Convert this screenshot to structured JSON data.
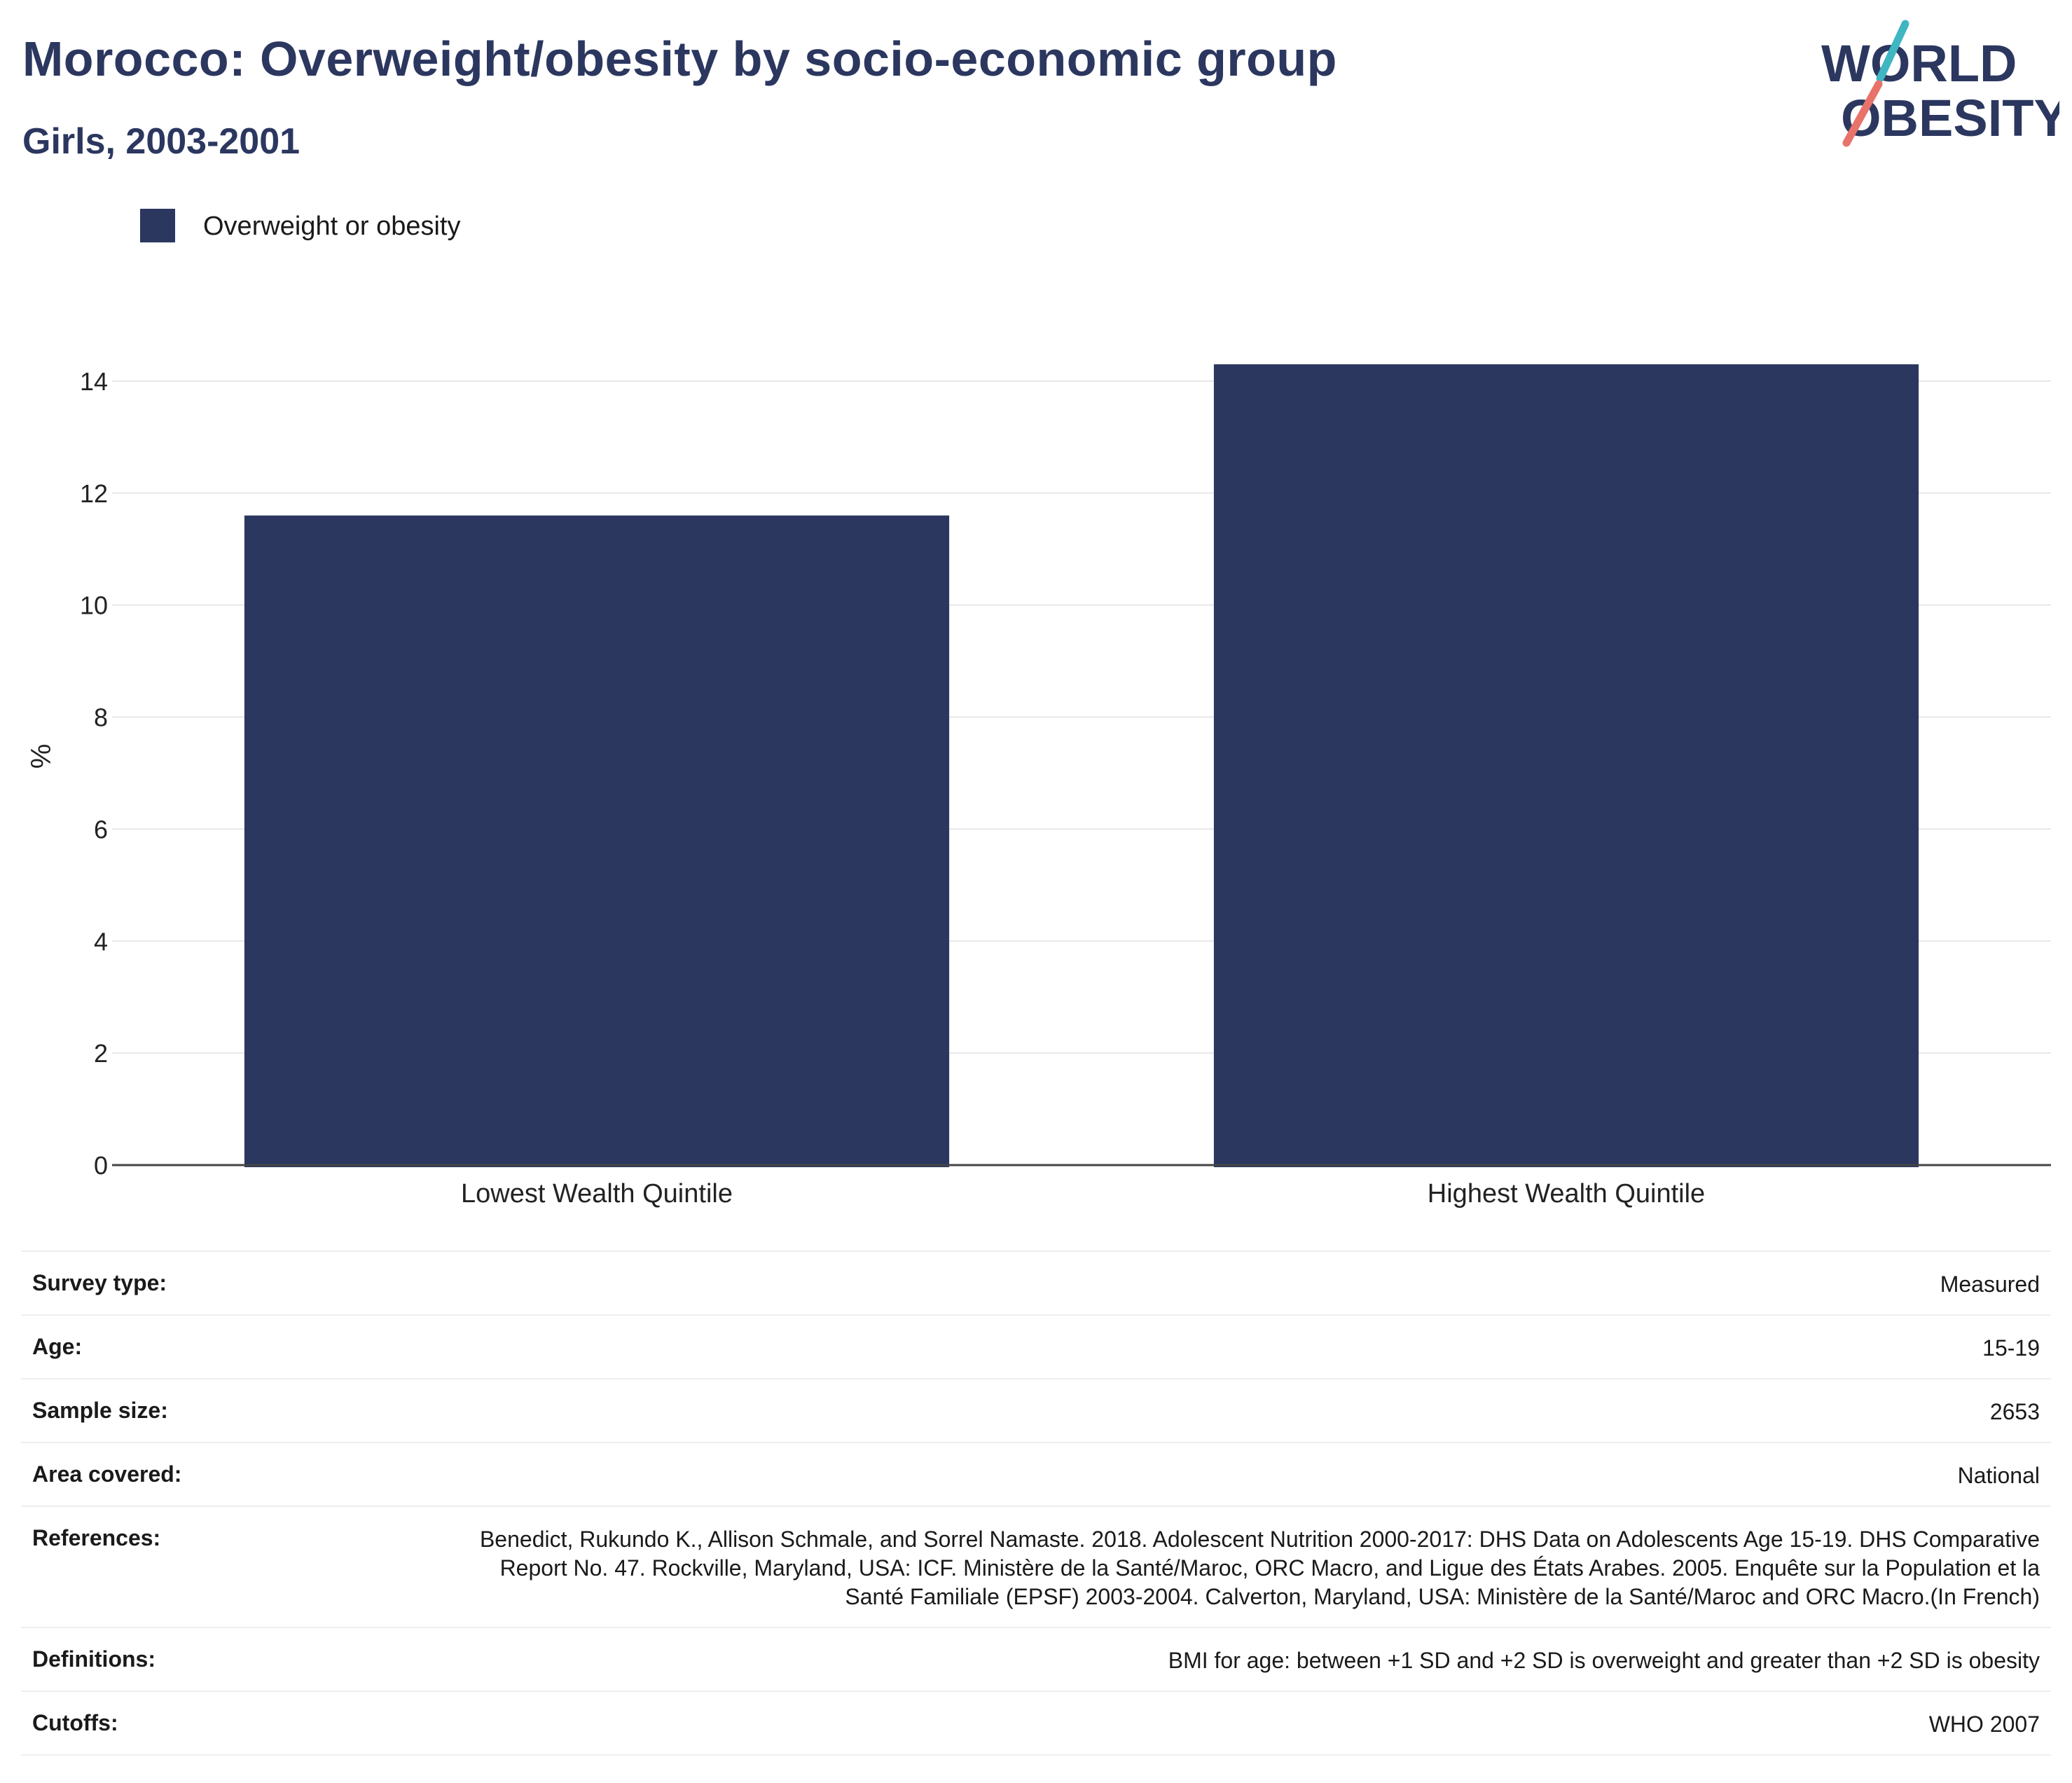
{
  "header": {
    "title": "Morocco: Overweight/obesity by socio-economic group",
    "subtitle": "Girls, 2003-2001"
  },
  "logo": {
    "line1": "WORLD",
    "line2": "OBESITY",
    "colors": {
      "text": "#2b375f",
      "slash_teal": "#3fb6c2",
      "slash_coral": "#e8736a"
    }
  },
  "legend": {
    "label": "Overweight or obesity",
    "color": "#2b375f"
  },
  "chart_data": {
    "type": "bar",
    "categories": [
      "Lowest Wealth Quintile",
      "Highest Wealth Quintile"
    ],
    "series": [
      {
        "name": "Overweight or obesity",
        "values": [
          11.6,
          14.3
        ],
        "color": "#2b375f"
      }
    ],
    "ylabel": "%",
    "ylim": [
      0,
      14.8
    ],
    "yticks": [
      0,
      2,
      4,
      6,
      8,
      10,
      12,
      14
    ],
    "grid": true,
    "legend_position": "top-left"
  },
  "info": [
    {
      "key": "Survey type:",
      "value": "Measured"
    },
    {
      "key": "Age:",
      "value": "15-19"
    },
    {
      "key": "Sample size:",
      "value": "2653"
    },
    {
      "key": "Area covered:",
      "value": "National"
    },
    {
      "key": "References:",
      "value": "Benedict, Rukundo K., Allison Schmale, and Sorrel Namaste. 2018. Adolescent Nutrition 2000-2017: DHS Data on Adolescents Age 15-19. DHS Comparative Report No. 47. Rockville, Maryland, USA: ICF. Ministère de la Santé/Maroc, ORC Macro, and Ligue des États Arabes. 2005. Enquête sur la Population et la Santé Familiale (EPSF) 2003-2004. Calverton, Maryland, USA: Ministère de la Santé/Maroc and ORC Macro.(In French)"
    },
    {
      "key": "Definitions:",
      "value": "BMI for age: between +1 SD and +2 SD is overweight and greater than +2 SD is obesity"
    },
    {
      "key": "Cutoffs:",
      "value": "WHO 2007"
    }
  ]
}
